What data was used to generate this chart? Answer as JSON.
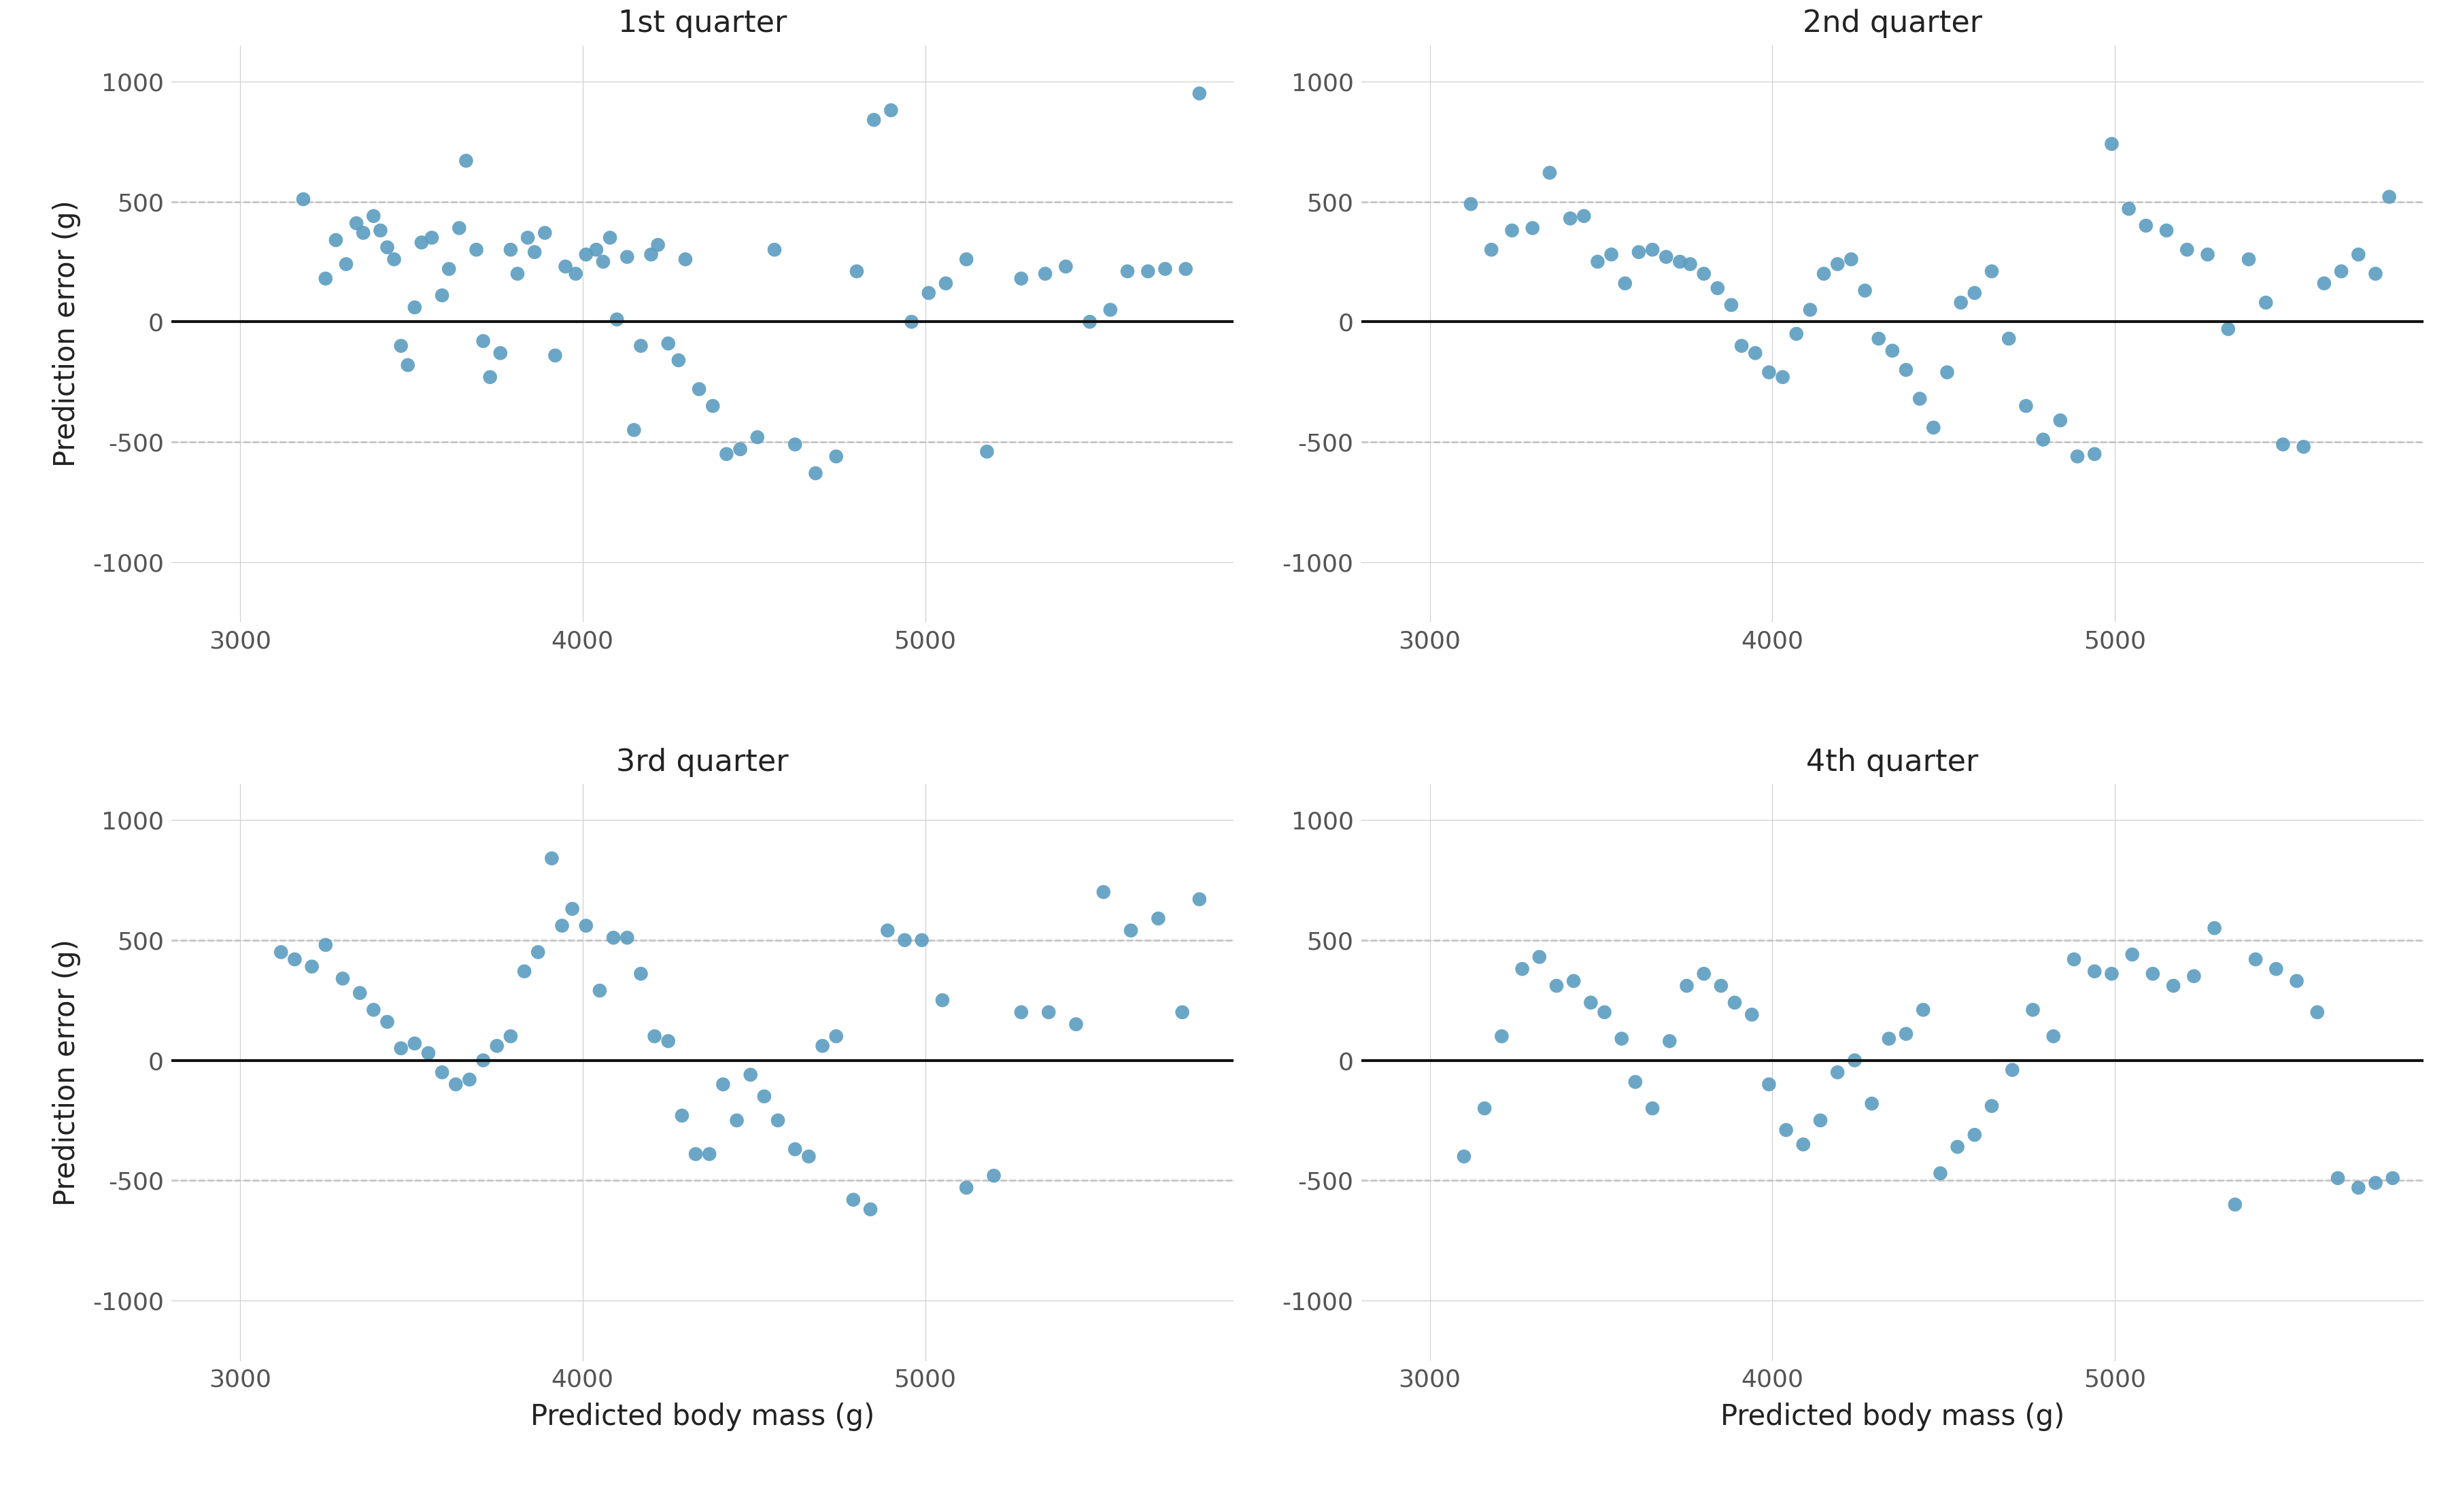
{
  "titles": [
    "1st quarter",
    "2nd quarter",
    "3rd quarter",
    "4th quarter"
  ],
  "xlabel": "Predicted body mass (g)",
  "ylabel": "Prediction error (g)",
  "xlim": [
    2800,
    5900
  ],
  "ylim": [
    -1250,
    1150
  ],
  "xticks": [
    3000,
    4000,
    5000
  ],
  "yticks": [
    -1000,
    -500,
    0,
    500,
    1000
  ],
  "hline_y": 0,
  "dashed_hlines": [
    -500,
    500
  ],
  "dot_color": "#5B9CC0",
  "dot_size": 220,
  "dot_alpha": 0.9,
  "background_color": "#ffffff",
  "panel_bg": "#ffffff",
  "grid_color": "#cccccc",
  "hline_color": "#111111",
  "hline_lw": 3.0,
  "dashed_color": "#aaaaaa",
  "dashed_lw": 1.8,
  "title_fontsize": 32,
  "label_fontsize": 30,
  "tick_fontsize": 26,
  "q1_x": [
    3185,
    3250,
    3280,
    3310,
    3340,
    3360,
    3390,
    3410,
    3430,
    3450,
    3470,
    3490,
    3510,
    3530,
    3560,
    3590,
    3610,
    3640,
    3660,
    3690,
    3710,
    3730,
    3760,
    3790,
    3810,
    3840,
    3860,
    3890,
    3920,
    3950,
    3980,
    4010,
    4040,
    4060,
    4080,
    4100,
    4130,
    4150,
    4170,
    4200,
    4220,
    4250,
    4280,
    4300,
    4340,
    4380,
    4420,
    4460,
    4510,
    4560,
    4620,
    4680,
    4740,
    4800,
    4850,
    4900,
    4960,
    5010,
    5060,
    5120,
    5180,
    5280,
    5350,
    5410,
    5480,
    5540,
    5590,
    5650,
    5700,
    5760,
    5800
  ],
  "q1_y": [
    510,
    180,
    340,
    240,
    410,
    370,
    440,
    380,
    310,
    260,
    -100,
    -180,
    60,
    330,
    350,
    110,
    220,
    390,
    670,
    300,
    -80,
    -230,
    -130,
    300,
    200,
    350,
    290,
    370,
    -140,
    230,
    200,
    280,
    300,
    250,
    350,
    10,
    270,
    -450,
    -100,
    280,
    320,
    -90,
    -160,
    260,
    -280,
    -350,
    -550,
    -530,
    -480,
    300,
    -510,
    -630,
    -560,
    210,
    840,
    880,
    0,
    120,
    160,
    260,
    -540,
    180,
    200,
    230,
    0,
    50,
    210,
    210,
    220,
    220,
    950
  ],
  "q2_x": [
    3120,
    3180,
    3240,
    3300,
    3350,
    3410,
    3450,
    3490,
    3530,
    3570,
    3610,
    3650,
    3690,
    3730,
    3760,
    3800,
    3840,
    3880,
    3910,
    3950,
    3990,
    4030,
    4070,
    4110,
    4150,
    4190,
    4230,
    4270,
    4310,
    4350,
    4390,
    4430,
    4470,
    4510,
    4550,
    4590,
    4640,
    4690,
    4740,
    4790,
    4840,
    4890,
    4940,
    4990,
    5040,
    5090,
    5150,
    5210,
    5270,
    5330,
    5390,
    5440,
    5490,
    5550,
    5610,
    5660,
    5710,
    5760,
    5800
  ],
  "q2_y": [
    490,
    300,
    380,
    390,
    620,
    430,
    440,
    250,
    280,
    160,
    290,
    300,
    270,
    250,
    240,
    200,
    140,
    70,
    -100,
    -130,
    -210,
    -230,
    -50,
    50,
    200,
    240,
    260,
    130,
    -70,
    -120,
    -200,
    -320,
    -440,
    -210,
    80,
    120,
    210,
    -70,
    -350,
    -490,
    -410,
    -560,
    -550,
    740,
    470,
    400,
    380,
    300,
    280,
    -30,
    260,
    80,
    -510,
    -520,
    160,
    210,
    280,
    200,
    520
  ],
  "q3_x": [
    3120,
    3160,
    3210,
    3250,
    3300,
    3350,
    3390,
    3430,
    3470,
    3510,
    3550,
    3590,
    3630,
    3670,
    3710,
    3750,
    3790,
    3830,
    3870,
    3910,
    3940,
    3970,
    4010,
    4050,
    4090,
    4130,
    4170,
    4210,
    4250,
    4290,
    4330,
    4370,
    4410,
    4450,
    4490,
    4530,
    4570,
    4620,
    4660,
    4700,
    4740,
    4790,
    4840,
    4890,
    4940,
    4990,
    5050,
    5120,
    5200,
    5280,
    5360,
    5440,
    5520,
    5600,
    5680,
    5750,
    5800
  ],
  "q3_y": [
    450,
    420,
    390,
    480,
    340,
    280,
    210,
    160,
    50,
    70,
    30,
    -50,
    -100,
    -80,
    0,
    60,
    100,
    370,
    450,
    840,
    560,
    630,
    560,
    290,
    510,
    510,
    360,
    100,
    80,
    -230,
    -390,
    -390,
    -100,
    -250,
    -60,
    -150,
    -250,
    -370,
    -400,
    60,
    100,
    -580,
    -620,
    540,
    500,
    500,
    250,
    -530,
    -480,
    200,
    200,
    150,
    700,
    540,
    590,
    200,
    670
  ],
  "q4_x": [
    3100,
    3160,
    3210,
    3270,
    3320,
    3370,
    3420,
    3470,
    3510,
    3560,
    3600,
    3650,
    3700,
    3750,
    3800,
    3850,
    3890,
    3940,
    3990,
    4040,
    4090,
    4140,
    4190,
    4240,
    4290,
    4340,
    4390,
    4440,
    4490,
    4540,
    4590,
    4640,
    4700,
    4760,
    4820,
    4880,
    4940,
    4990,
    5050,
    5110,
    5170,
    5230,
    5290,
    5350,
    5410,
    5470,
    5530,
    5590,
    5650,
    5710,
    5760,
    5810
  ],
  "q4_y": [
    -400,
    -200,
    100,
    380,
    430,
    310,
    330,
    240,
    200,
    90,
    -90,
    -200,
    80,
    310,
    360,
    310,
    240,
    190,
    -100,
    -290,
    -350,
    -250,
    -50,
    0,
    -180,
    90,
    110,
    210,
    -470,
    -360,
    -310,
    -190,
    -40,
    210,
    100,
    420,
    370,
    360,
    440,
    360,
    310,
    350,
    550,
    -600,
    420,
    380,
    330,
    200,
    -490,
    -530,
    -510,
    -490
  ]
}
